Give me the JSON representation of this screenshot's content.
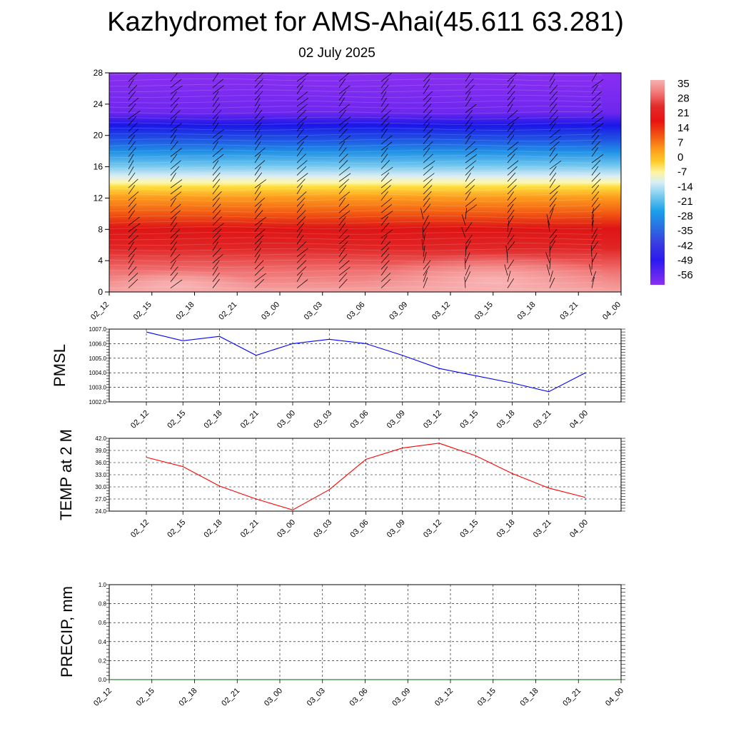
{
  "header": {
    "title": "Kazhydromet for AMS-Ahai(45.611 63.281)",
    "subtitle": "02 July 2025"
  },
  "chart_data": [
    {
      "type": "heatmap",
      "x_tick_labels": [
        "02_12",
        "02_15",
        "02_18",
        "02_21",
        "03_00",
        "03_03",
        "03_06",
        "03_09",
        "03_12",
        "03_15",
        "03_18",
        "03_21",
        "04_00"
      ],
      "y_ticks": [
        0,
        4,
        8,
        12,
        16,
        20,
        24,
        28
      ],
      "ylim": [
        0,
        28
      ],
      "colorbar_labels": [
        "35",
        "28",
        "21",
        "14",
        "7",
        "0",
        "-7",
        "-14",
        "-21",
        "-28",
        "-35",
        "-42",
        "-49",
        "-56"
      ],
      "temperature_by_height": [
        {
          "height": 0,
          "value": 33
        },
        {
          "height": 3,
          "value": 30
        },
        {
          "height": 5.5,
          "value": 25
        },
        {
          "height": 8,
          "value": 17
        },
        {
          "height": 10.5,
          "value": 9
        },
        {
          "height": 13,
          "value": 0
        },
        {
          "height": 14,
          "value": -12
        },
        {
          "height": 16,
          "value": -26
        },
        {
          "height": 18,
          "value": -40
        },
        {
          "height": 20,
          "value": -52
        },
        {
          "height": 21.5,
          "value": -58
        },
        {
          "height": 23,
          "value": -61
        },
        {
          "height": 28,
          "value": -62
        }
      ],
      "wind_barbs": "present"
    },
    {
      "type": "line",
      "ylabel": "PMSL",
      "ylim": [
        1002.0,
        1007.0
      ],
      "y_tick_labels": [
        "1007.0",
        "1006.0",
        "1005.0",
        "1004.0",
        "1003.0",
        "1002.0"
      ],
      "x_tick_labels": [
        "02_12",
        "02_15",
        "02_18",
        "02_21",
        "03_00",
        "03_03",
        "03_06",
        "03_09",
        "03_12",
        "03_15",
        "03_18",
        "03_21",
        "04_00"
      ],
      "series": [
        {
          "color": "#0000ff",
          "values": [
            1006.8,
            1006.2,
            1006.5,
            1005.2,
            1006.0,
            1006.3,
            1006.0,
            1005.2,
            1004.3,
            1003.8,
            1003.3,
            1002.7,
            1004.0
          ]
        }
      ]
    },
    {
      "type": "line",
      "ylabel": "TEMP at 2 M",
      "ylim": [
        24.0,
        42.0
      ],
      "y_tick_labels": [
        "42.0",
        "39.0",
        "36.0",
        "33.0",
        "30.0",
        "27.0",
        "24.0"
      ],
      "x_tick_labels": [
        "02_12",
        "02_15",
        "02_18",
        "02_21",
        "03_00",
        "03_03",
        "03_06",
        "03_09",
        "03_12",
        "03_15",
        "03_18",
        "03_21",
        "04_00"
      ],
      "series": [
        {
          "color": "#ff0000",
          "values": [
            37.3,
            35.0,
            30.2,
            27.0,
            24.3,
            29.3,
            36.8,
            39.6,
            40.8,
            37.7,
            33.3,
            29.7,
            27.4
          ]
        }
      ]
    },
    {
      "type": "line",
      "ylabel": "PRECIP, mm",
      "ylim": [
        0.0,
        1.0
      ],
      "y_tick_labels": [
        "1.0",
        "0.8",
        "0.6",
        "0.4",
        "0.2",
        "0.0"
      ],
      "x_tick_labels": [
        "02_12",
        "02_15",
        "02_18",
        "02_21",
        "03_00",
        "03_03",
        "03_06",
        "03_09",
        "03_12",
        "03_15",
        "03_18",
        "03_21",
        "04_00"
      ],
      "series": [
        {
          "color": "#006400",
          "values": [
            0,
            0,
            0,
            0,
            0,
            0,
            0,
            0,
            0,
            0,
            0,
            0,
            0
          ]
        }
      ]
    }
  ],
  "colors": {
    "pmsl_line": "#0000ff",
    "temp_line": "#ff0000",
    "precip_line": "#006400"
  }
}
